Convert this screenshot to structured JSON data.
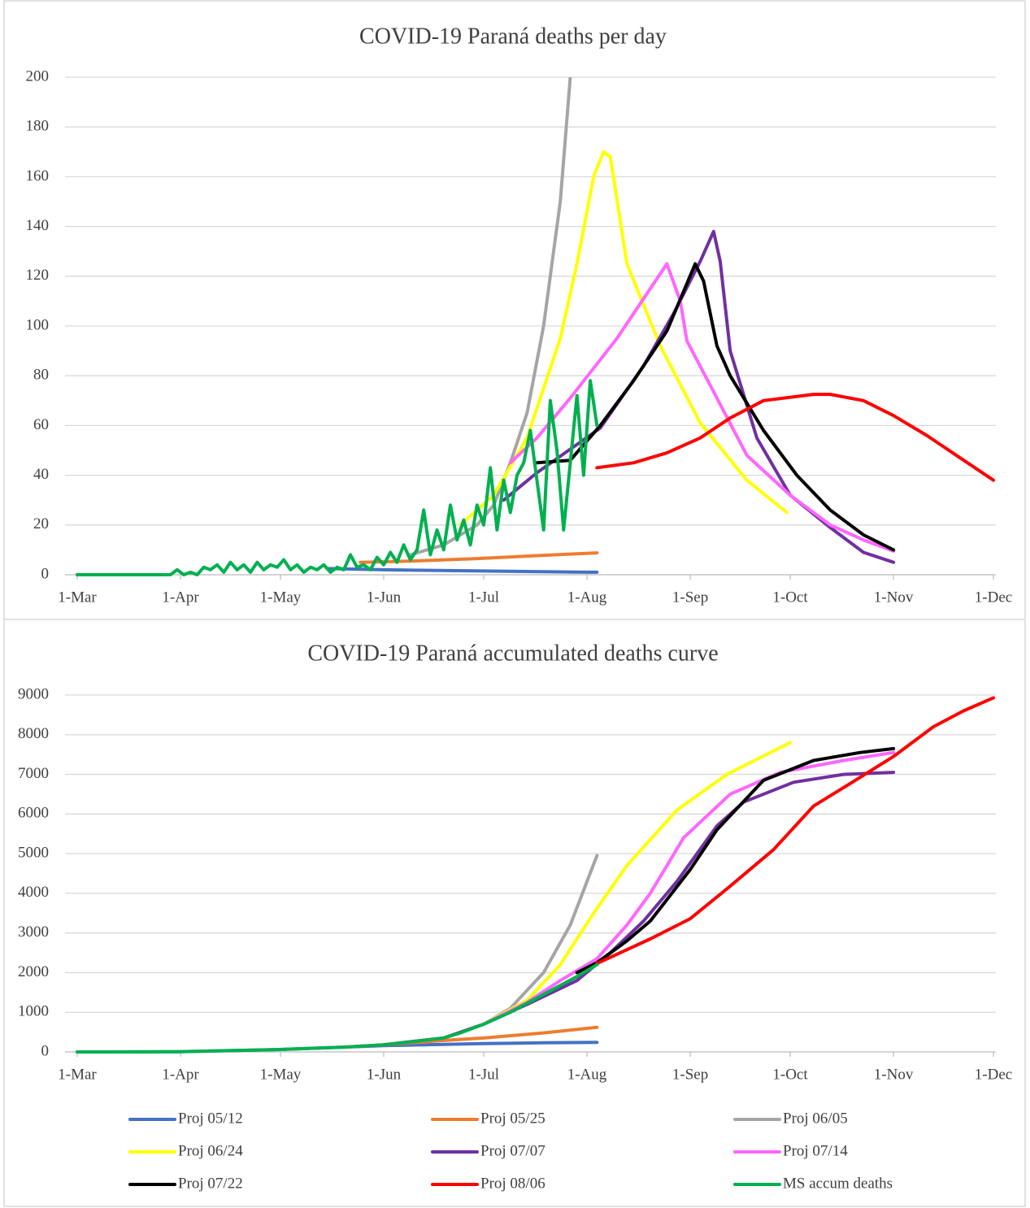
{
  "chart_data": [
    {
      "type": "line",
      "title": "COVID-19 Paraná deaths per day",
      "grid": true,
      "xlim": [
        0,
        275
      ],
      "ylim": [
        0,
        200
      ],
      "yticks": [
        0,
        20,
        40,
        60,
        80,
        100,
        120,
        140,
        160,
        180,
        200
      ],
      "xticks": [
        {
          "value": 0,
          "label": "1-Mar"
        },
        {
          "value": 31,
          "label": "1-Apr"
        },
        {
          "value": 61,
          "label": "1-May"
        },
        {
          "value": 92,
          "label": "1-Jun"
        },
        {
          "value": 122,
          "label": "1-Jul"
        },
        {
          "value": 153,
          "label": "1-Aug"
        },
        {
          "value": 184,
          "label": "1-Sep"
        },
        {
          "value": 214,
          "label": "1-Oct"
        },
        {
          "value": 245,
          "label": "1-Nov"
        },
        {
          "value": 275,
          "label": "1-Dec"
        }
      ],
      "series": [
        {
          "color": "#4472c4",
          "x": [
            75,
            92,
            122,
            153,
            156
          ],
          "values": [
            2.5,
            2,
            1.5,
            1,
            1
          ]
        },
        {
          "color": "#ed7d31",
          "x": [
            85,
            100,
            120,
            140,
            156
          ],
          "values": [
            5,
            5.5,
            6.5,
            7.8,
            8.8
          ]
        },
        {
          "color": "#a5a5a5",
          "x": [
            100,
            110,
            120,
            125,
            130,
            135,
            140,
            145,
            148
          ],
          "values": [
            8,
            12,
            20,
            28,
            45,
            65,
            100,
            150,
            200
          ]
        },
        {
          "color": "#ffff00",
          "x": [
            115,
            125,
            135,
            145,
            150,
            155,
            158,
            160,
            165,
            175,
            187,
            201,
            213
          ],
          "values": [
            20,
            32,
            55,
            95,
            125,
            160,
            170,
            168,
            125,
            92,
            61,
            38,
            25
          ]
        },
        {
          "color": "#7030a0",
          "x": [
            128,
            138,
            157,
            170,
            179,
            187,
            191,
            193,
            196,
            204,
            214,
            226,
            236,
            245
          ],
          "values": [
            30,
            41,
            59,
            84,
            105,
            126,
            138,
            126,
            90,
            55,
            32,
            19,
            9,
            5
          ]
        },
        {
          "color": "#ff66ff",
          "x": [
            130,
            138,
            148,
            162,
            172,
            177,
            181,
            183,
            192,
            201,
            214,
            226,
            236,
            245
          ],
          "values": [
            45,
            55,
            71,
            95,
            115,
            125,
            110,
            94,
            71,
            48,
            32,
            20,
            14,
            9.5
          ]
        },
        {
          "color": "#000000",
          "x": [
            138,
            148,
            157,
            167,
            177,
            185.5,
            188,
            192,
            196,
            206,
            216,
            226,
            236,
            245
          ],
          "values": [
            45,
            46,
            60,
            78,
            98,
            125,
            118,
            92,
            80,
            58,
            40,
            26,
            16,
            10
          ]
        },
        {
          "color": "#ff0000",
          "x": [
            156,
            167,
            177,
            187,
            196,
            206,
            221,
            226,
            236,
            245,
            255,
            265,
            275
          ],
          "values": [
            43,
            45,
            49,
            55,
            63,
            70,
            72.5,
            72.5,
            70,
            64,
            56,
            47,
            38
          ]
        },
        {
          "color": "#00b050",
          "x": [
            0,
            10,
            20,
            28,
            30,
            32,
            34,
            36,
            38,
            40,
            42,
            44,
            46,
            48,
            50,
            52,
            54,
            56,
            58,
            60,
            62,
            64,
            66,
            68,
            70,
            72,
            74,
            76,
            78,
            80,
            82,
            84,
            86,
            88,
            90,
            92,
            94,
            96,
            98,
            100,
            102,
            104,
            106,
            108,
            110,
            112,
            114,
            116,
            118,
            120,
            122,
            124,
            126,
            128,
            130,
            132,
            134,
            136,
            138,
            140,
            142,
            144,
            146,
            148,
            150,
            152,
            154,
            156
          ],
          "values": [
            0,
            0,
            0,
            0,
            2,
            0,
            1,
            0,
            3,
            2,
            4,
            1,
            5,
            2,
            4,
            1,
            5,
            2,
            4,
            3,
            6,
            2,
            4,
            1,
            3,
            2,
            4,
            1,
            3,
            2,
            8,
            3,
            4,
            2,
            7,
            4,
            9,
            5,
            12,
            6,
            10,
            26,
            8,
            18,
            10,
            28,
            14,
            22,
            12,
            28,
            20,
            43,
            18,
            38,
            25,
            40,
            45,
            58,
            38,
            18,
            70,
            50,
            18,
            45,
            72,
            40,
            78,
            60
          ]
        }
      ]
    },
    {
      "type": "line",
      "title": "COVID-19 Paraná accumulated deaths curve",
      "grid": true,
      "xlim": [
        0,
        275
      ],
      "ylim": [
        0,
        9000
      ],
      "yticks": [
        0,
        1000,
        2000,
        3000,
        4000,
        5000,
        6000,
        7000,
        8000,
        9000
      ],
      "xticks": [
        {
          "value": 0,
          "label": "1-Mar"
        },
        {
          "value": 31,
          "label": "1-Apr"
        },
        {
          "value": 61,
          "label": "1-May"
        },
        {
          "value": 92,
          "label": "1-Jun"
        },
        {
          "value": 122,
          "label": "1-Jul"
        },
        {
          "value": 153,
          "label": "1-Aug"
        },
        {
          "value": 184,
          "label": "1-Sep"
        },
        {
          "value": 214,
          "label": "1-Oct"
        },
        {
          "value": 245,
          "label": "1-Nov"
        },
        {
          "value": 275,
          "label": "1-Dec"
        }
      ],
      "series": [
        {
          "name": "Proj 05/12",
          "color": "#4472c4",
          "x": [
            0,
            30,
            60,
            80,
            92,
            110,
            122,
            140,
            156
          ],
          "values": [
            0,
            5,
            60,
            120,
            160,
            190,
            210,
            230,
            240
          ]
        },
        {
          "name": "Proj 05/25",
          "color": "#ed7d31",
          "x": [
            80,
            92,
            110,
            122,
            140,
            156
          ],
          "values": [
            120,
            180,
            290,
            350,
            480,
            620
          ]
        },
        {
          "name": "Proj 06/05",
          "color": "#a5a5a5",
          "x": [
            92,
            110,
            122,
            130,
            140,
            148,
            156
          ],
          "values": [
            180,
            350,
            700,
            1100,
            2000,
            3200,
            4950
          ]
        },
        {
          "name": "Proj 06/24",
          "color": "#ffff00",
          "x": [
            92,
            110,
            122,
            135,
            145,
            155,
            165,
            180,
            195,
            214
          ],
          "values": [
            180,
            350,
            700,
            1300,
            2200,
            3500,
            4700,
            6100,
            7000,
            7800
          ]
        },
        {
          "name": "Proj 07/07",
          "color": "#7030a0",
          "x": [
            92,
            110,
            122,
            135,
            150,
            160,
            170,
            180,
            192,
            200,
            215,
            230,
            245
          ],
          "values": [
            180,
            350,
            700,
            1200,
            1800,
            2500,
            3300,
            4300,
            5700,
            6300,
            6800,
            7000,
            7050
          ]
        },
        {
          "name": "Proj 07/14",
          "color": "#ff66ff",
          "x": [
            122,
            135,
            145,
            156,
            165,
            172,
            182,
            196,
            211,
            230,
            245
          ],
          "values": [
            700,
            1250,
            1800,
            2350,
            3200,
            4000,
            5400,
            6500,
            7050,
            7350,
            7550
          ]
        },
        {
          "name": "Proj 07/22",
          "color": "#000000",
          "x": [
            150,
            156,
            165,
            172,
            184,
            192,
            206,
            221,
            235,
            245
          ],
          "values": [
            2000,
            2250,
            2800,
            3300,
            4600,
            5600,
            6850,
            7350,
            7550,
            7650
          ]
        },
        {
          "name": "Proj 08/06",
          "color": "#ff0000",
          "x": [
            156,
            172,
            184,
            196,
            209,
            221,
            233,
            245,
            257,
            266,
            275
          ],
          "values": [
            2230,
            2850,
            3360,
            4180,
            5100,
            6200,
            6820,
            7450,
            8200,
            8600,
            8930
          ]
        },
        {
          "name": "MS accum deaths",
          "color": "#00b050",
          "x": [
            0,
            30,
            60,
            80,
            92,
            100,
            110,
            115,
            122,
            130,
            140,
            150,
            156
          ],
          "values": [
            0,
            5,
            60,
            120,
            180,
            250,
            350,
            480,
            700,
            1000,
            1450,
            1900,
            2200
          ]
        }
      ]
    }
  ]
}
